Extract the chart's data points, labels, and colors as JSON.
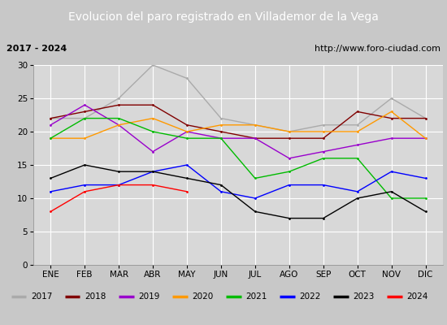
{
  "title": "Evolucion del paro registrado en Villademor de la Vega",
  "subtitle_left": "2017 - 2024",
  "subtitle_right": "http://www.foro-ciudad.com",
  "months": [
    "ENE",
    "FEB",
    "MAR",
    "ABR",
    "MAY",
    "JUN",
    "JUL",
    "AGO",
    "SEP",
    "OCT",
    "NOV",
    "DIC"
  ],
  "series": {
    "2017": {
      "values": [
        22,
        22,
        25,
        30,
        28,
        22,
        21,
        20,
        21,
        21,
        25,
        22
      ],
      "color": "#aaaaaa"
    },
    "2018": {
      "values": [
        22,
        23,
        24,
        24,
        21,
        20,
        19,
        19,
        19,
        23,
        22,
        22
      ],
      "color": "#800000"
    },
    "2019": {
      "values": [
        21,
        24,
        21,
        17,
        20,
        19,
        19,
        16,
        17,
        18,
        19,
        19
      ],
      "color": "#9900cc"
    },
    "2020": {
      "values": [
        19,
        19,
        21,
        22,
        20,
        21,
        21,
        20,
        20,
        20,
        23,
        19
      ],
      "color": "#ff9900"
    },
    "2021": {
      "values": [
        19,
        22,
        22,
        20,
        19,
        19,
        13,
        14,
        16,
        16,
        10,
        10
      ],
      "color": "#00bb00"
    },
    "2022": {
      "values": [
        11,
        12,
        12,
        14,
        15,
        11,
        10,
        12,
        12,
        11,
        14,
        13
      ],
      "color": "#0000ff"
    },
    "2023": {
      "values": [
        13,
        15,
        14,
        14,
        13,
        12,
        8,
        7,
        7,
        10,
        11,
        8
      ],
      "color": "#000000"
    },
    "2024": {
      "values": [
        8,
        11,
        12,
        12,
        11,
        null,
        null,
        null,
        null,
        null,
        null,
        null
      ],
      "color": "#ff0000"
    }
  },
  "ylim": [
    0,
    30
  ],
  "yticks": [
    0,
    5,
    10,
    15,
    20,
    25,
    30
  ],
  "outer_bg": "#c8c8c8",
  "plot_bg_color": "#d8d8d8",
  "title_bg_color": "#4466bb",
  "title_text_color": "#ffffff",
  "subtitle_bg_color": "#e0e0e0",
  "grid_color": "#ffffff",
  "title_fontsize": 10,
  "subtitle_fontsize": 8,
  "legend_fontsize": 7.5,
  "tick_fontsize": 7.5,
  "linewidth": 1.0
}
